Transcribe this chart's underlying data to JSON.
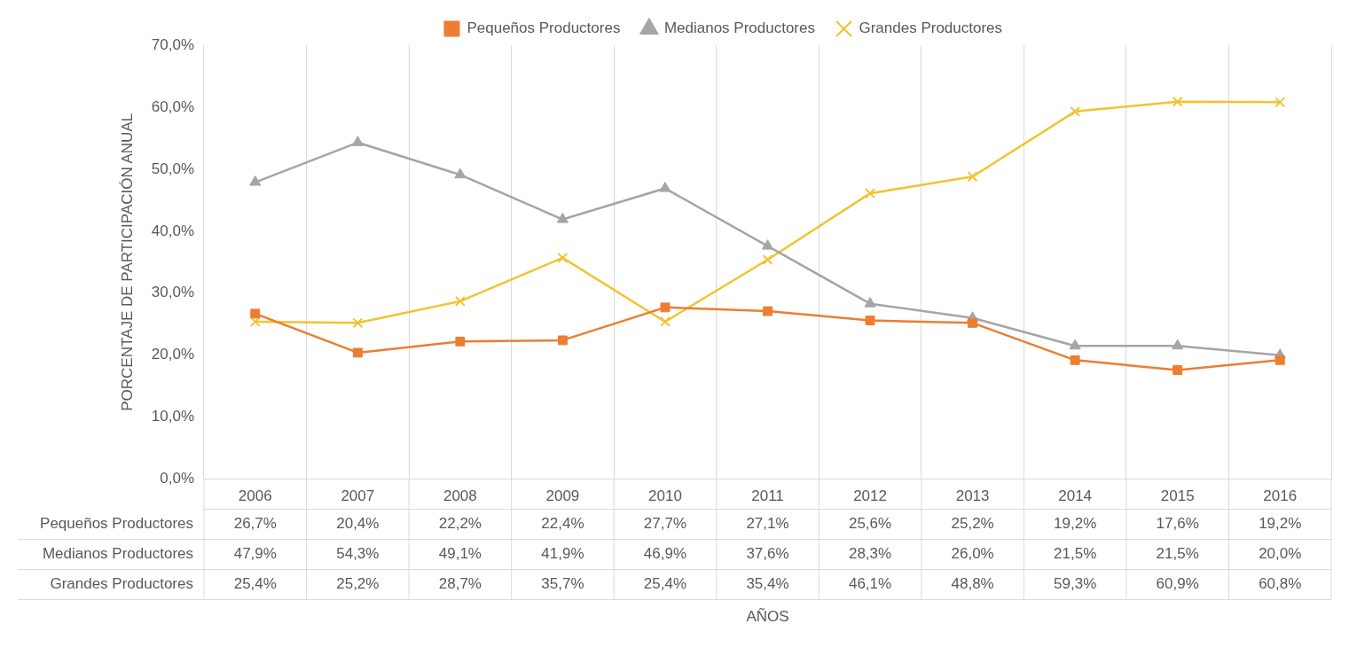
{
  "chart_data": {
    "type": "line",
    "annotations": [
      "AÑOS"
    ],
    "ylabel": "PORCENTAJE DE PARTICIPACIÓN ANUAL",
    "categories": [
      "2006",
      "2007",
      "2008",
      "2009",
      "2010",
      "2011",
      "2012",
      "2013",
      "2014",
      "2015",
      "2016"
    ],
    "ylim": [
      0,
      70
    ],
    "yticks": [
      {
        "value": 0,
        "label": "0,0%"
      },
      {
        "value": 10,
        "label": "10,0%"
      },
      {
        "value": 20,
        "label": "20,0%"
      },
      {
        "value": 30,
        "label": "30,0%"
      },
      {
        "value": 40,
        "label": "40,0%"
      },
      {
        "value": 50,
        "label": "50,0%"
      },
      {
        "value": 60,
        "label": "60,0%"
      },
      {
        "value": 70,
        "label": "70,0%"
      }
    ],
    "grid": "x",
    "legend": "top",
    "series": [
      {
        "name": "Pequeños Productores",
        "color": "#ed7d31",
        "marker": "square",
        "values": [
          26.7,
          20.4,
          22.2,
          22.4,
          27.7,
          27.1,
          25.6,
          25.2,
          19.2,
          17.6,
          19.2
        ],
        "value_labels": [
          "26,7%",
          "20,4%",
          "22,2%",
          "22,4%",
          "27,7%",
          "27,1%",
          "25,6%",
          "25,2%",
          "19,2%",
          "17,6%",
          "19,2%"
        ]
      },
      {
        "name": "Medianos Productores",
        "color": "#a5a5a5",
        "marker": "triangle",
        "values": [
          47.9,
          54.3,
          49.1,
          41.9,
          46.9,
          37.6,
          28.3,
          26.0,
          21.5,
          21.5,
          20.0
        ],
        "value_labels": [
          "47,9%",
          "54,3%",
          "49,1%",
          "41,9%",
          "46,9%",
          "37,6%",
          "28,3%",
          "26,0%",
          "21,5%",
          "21,5%",
          "20,0%"
        ]
      },
      {
        "name": "Grandes Productores",
        "color": "#f2c32e",
        "marker": "cross",
        "values": [
          25.4,
          25.2,
          28.7,
          35.7,
          25.4,
          35.4,
          46.1,
          48.8,
          59.3,
          60.9,
          60.8
        ],
        "value_labels": [
          "25,4%",
          "25,2%",
          "28,7%",
          "35,7%",
          "25,4%",
          "35,4%",
          "46,1%",
          "48,8%",
          "59,3%",
          "60,9%",
          "60,8%"
        ]
      }
    ]
  }
}
